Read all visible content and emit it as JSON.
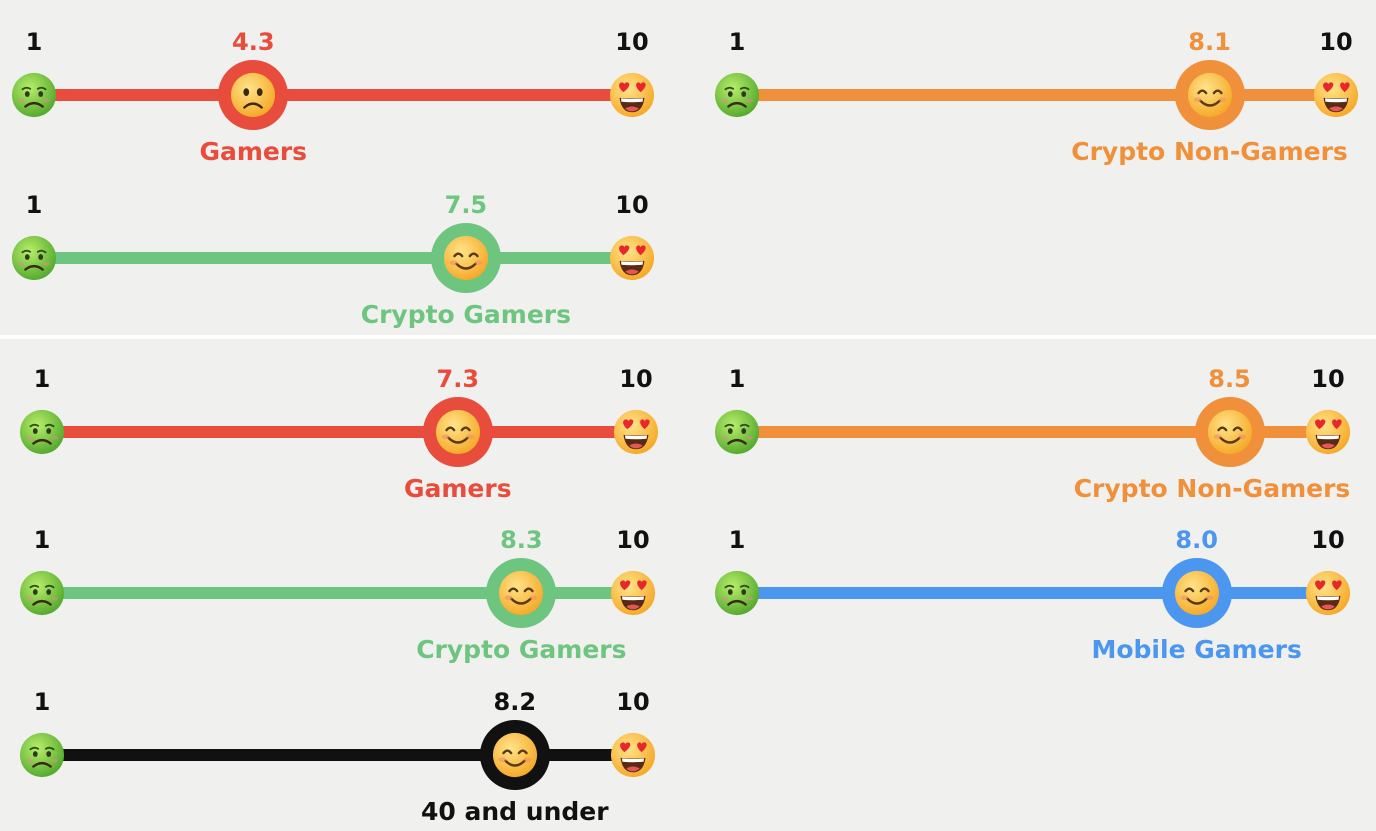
{
  "icons": {
    "min_face": "nauseated-face-icon",
    "max_face": "heart-eyes-face-icon",
    "happy_face": "smiling-face-icon",
    "sad_face": "frowning-face-icon"
  },
  "colors": {
    "gamers": "#e74c3c",
    "crypto_non_gamers": "#f0903a",
    "crypto_gamers": "#6dc57f",
    "mobile_gamers": "#4b96ee",
    "age_40_and_under": "#111111",
    "background": "#f0f0ee",
    "divider": "#ffffff"
  },
  "chart_data": [
    {
      "type": "scale",
      "panel": "top",
      "scale_min": 1,
      "scale_max": 10,
      "min_label": "1",
      "max_label": "10",
      "scales": [
        {
          "name": "Gamers",
          "value": 4.3,
          "value_label": "4.3",
          "color_key": "gamers",
          "mood": "sad"
        },
        {
          "name": "Crypto Non-Gamers",
          "value": 8.1,
          "value_label": "8.1",
          "color_key": "crypto_non_gamers",
          "mood": "happy"
        },
        {
          "name": "Crypto Gamers",
          "value": 7.5,
          "value_label": "7.5",
          "color_key": "crypto_gamers",
          "mood": "happy"
        }
      ]
    },
    {
      "type": "scale",
      "panel": "bottom",
      "scale_min": 1,
      "scale_max": 10,
      "min_label": "1",
      "max_label": "10",
      "scales": [
        {
          "name": "Gamers",
          "value": 7.3,
          "value_label": "7.3",
          "color_key": "gamers",
          "mood": "happy"
        },
        {
          "name": "Crypto Non-Gamers",
          "value": 8.5,
          "value_label": "8.5",
          "color_key": "crypto_non_gamers",
          "mood": "happy"
        },
        {
          "name": "Crypto Gamers",
          "value": 8.3,
          "value_label": "8.3",
          "color_key": "crypto_gamers",
          "mood": "happy"
        },
        {
          "name": "Mobile Gamers",
          "value": 8.0,
          "value_label": "8.0",
          "color_key": "mobile_gamers",
          "mood": "happy"
        },
        {
          "name": "40 and under",
          "value": 8.2,
          "value_label": "8.2",
          "color_key": "age_40_and_under",
          "mood": "happy"
        }
      ]
    }
  ]
}
